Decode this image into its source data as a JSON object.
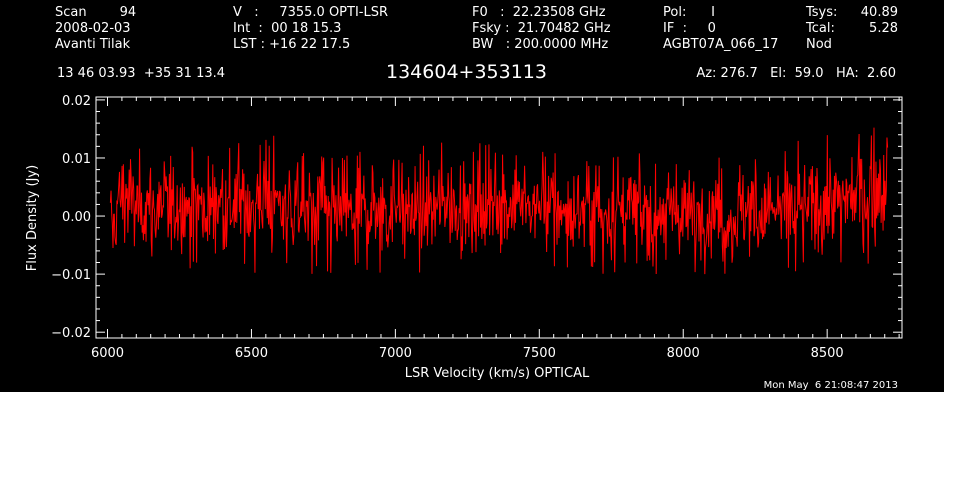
{
  "header": {
    "col1": [
      "Scan        94",
      "2008-02-03",
      "Avanti Tilak"
    ],
    "col2": [
      "V   :     7355.0 OPTI-LSR",
      "Int  :  00 18 15.3",
      "LST : +16 22 17.5"
    ],
    "col3": [
      "F0   :  22.23508 GHz",
      "Fsky :  21.70482 GHz",
      "BW   : 200.0000 MHz"
    ],
    "col4": [
      "Pol:      I",
      "IF  :     0",
      "AGBT07A_066_17"
    ],
    "col5a": [
      "Tsys:",
      "Tcal:",
      "Nod"
    ],
    "col5b": [
      "40.89",
      "5.28",
      ""
    ],
    "coords": "13 46 03.93  +35 31 13.4",
    "source": "134604+353113",
    "azelha": "Az: 276.7   El:  59.0   HA:  2.60"
  },
  "timestamp": "Mon May  6 21:08:47 2013",
  "colors": {
    "panel": "#000000",
    "axes": "#ffffff",
    "trace": "#ff0000"
  },
  "chart_data": {
    "type": "line",
    "title": "",
    "xlabel": "LSR Velocity (km/s) OPTICAL",
    "ylabel": "Flux Density (Jy)",
    "xlim": [
      5960,
      8760
    ],
    "ylim": [
      -0.021,
      0.0205
    ],
    "xticks": [
      6000,
      6500,
      7000,
      7500,
      8000,
      8500
    ],
    "xtick_labels": [
      "6000",
      "6500",
      "7000",
      "7500",
      "8000",
      "8500"
    ],
    "yticks": [
      -0.02,
      -0.01,
      0.0,
      0.01,
      0.02
    ],
    "ytick_labels": [
      "−0.02",
      "−0.01",
      "0.00",
      "0.01",
      "0.02"
    ],
    "series": [
      {
        "x_start": 6010,
        "x_end": 8710,
        "points": 1200,
        "noise_rms": 0.0042,
        "envelope": [
          [
            6010,
            -0.0115,
            0.006
          ],
          [
            6025,
            -0.007,
            0.0045
          ],
          [
            6040,
            -0.0025,
            0.009
          ],
          [
            6100,
            -0.009,
            0.012
          ],
          [
            6400,
            -0.009,
            0.012
          ],
          [
            6550,
            -0.011,
            0.0155
          ],
          [
            6750,
            -0.011,
            0.012
          ],
          [
            7300,
            -0.009,
            0.013
          ],
          [
            7700,
            -0.01,
            0.011
          ],
          [
            8200,
            -0.01,
            0.011
          ],
          [
            8500,
            -0.01,
            0.014
          ],
          [
            8660,
            -0.008,
            0.0155
          ],
          [
            8710,
            0.0,
            0.0135
          ]
        ]
      }
    ]
  }
}
